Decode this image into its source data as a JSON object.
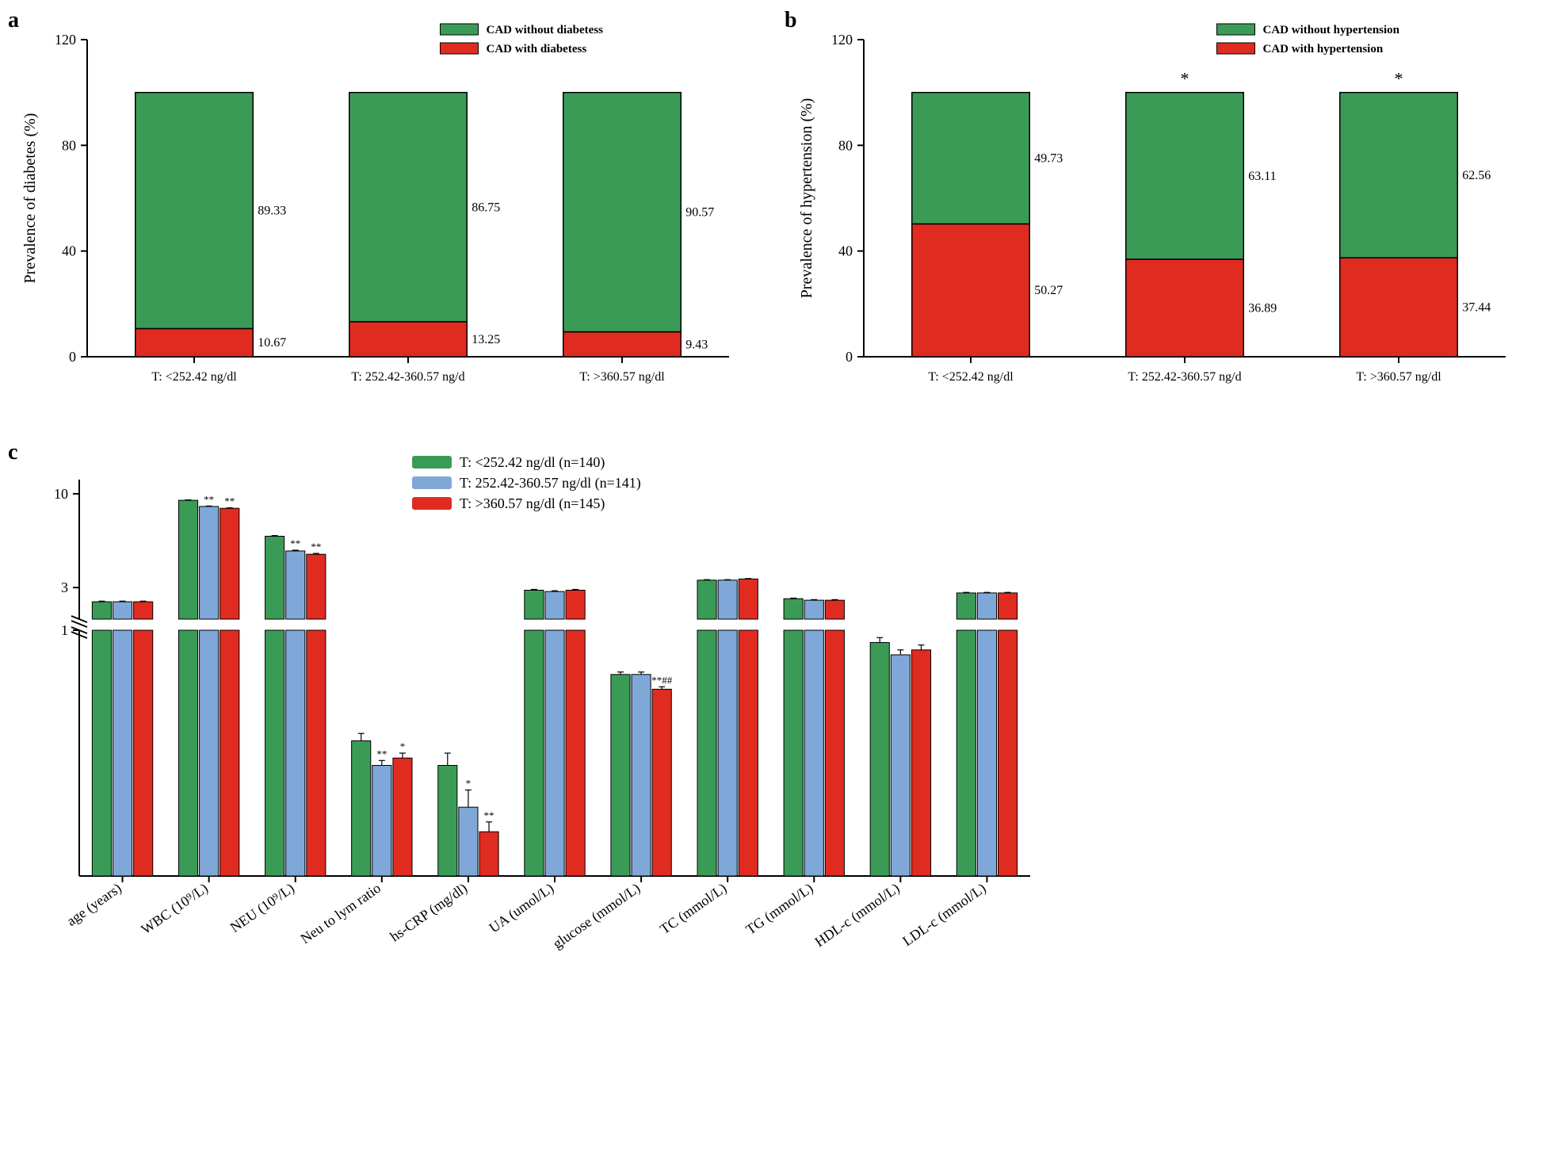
{
  "colors": {
    "green": "#3a9b57",
    "red": "#e02b20",
    "blue": "#7fa8d9",
    "black": "#000000",
    "white": "#ffffff"
  },
  "panelA": {
    "label": "a",
    "ylabel": "Prevalence of diabetes (%)",
    "ylim": [
      0,
      120
    ],
    "ytick_step": 40,
    "yticks": [
      0,
      40,
      80,
      120
    ],
    "categories": [
      "T: <252.42 ng/dl",
      "T: 252.42-360.57 ng/d",
      "T: >360.57 ng/dl"
    ],
    "legend": [
      {
        "label": "CAD without diabetess",
        "color": "#3a9b57"
      },
      {
        "label": "CAD with diabetess",
        "color": "#e02b20"
      }
    ],
    "bars": [
      {
        "with": 10.67,
        "without": 89.33,
        "sig": ""
      },
      {
        "with": 13.25,
        "without": 86.75,
        "sig": ""
      },
      {
        "with": 9.43,
        "without": 90.57,
        "sig": ""
      }
    ],
    "label_fontsize": 20,
    "tick_fontsize": 18,
    "value_fontsize": 16
  },
  "panelB": {
    "label": "b",
    "ylabel": "Prevalence of hypertension (%)",
    "ylim": [
      0,
      120
    ],
    "ytick_step": 40,
    "yticks": [
      0,
      40,
      80,
      120
    ],
    "categories": [
      "T: <252.42 ng/dl",
      "T: 252.42-360.57 ng/d",
      "T: >360.57 ng/dl"
    ],
    "legend": [
      {
        "label": "CAD without hypertension",
        "color": "#3a9b57"
      },
      {
        "label": "CAD with hypertension",
        "color": "#e02b20"
      }
    ],
    "bars": [
      {
        "with": 50.27,
        "without": 49.73,
        "sig": ""
      },
      {
        "with": 36.89,
        "without": 63.11,
        "sig": "*"
      },
      {
        "with": 37.44,
        "without": 62.56,
        "sig": "*"
      }
    ],
    "label_fontsize": 20,
    "tick_fontsize": 18,
    "value_fontsize": 16
  },
  "panelC": {
    "label": "c",
    "type": "grouped-bar-broken-log",
    "ylabel": "",
    "yticks_lower": [
      1
    ],
    "yticks_upper": [
      3,
      10
    ],
    "break_low": 1.0,
    "break_high": 2.0,
    "legend": [
      {
        "label": "T: <252.42 ng/dl (n=140)",
        "color": "#3a9b57"
      },
      {
        "label": "T: 252.42-360.57 ng/dl (n=141)",
        "color": "#7fa8d9"
      },
      {
        "label": "T: >360.57 ng/dl (n=145)",
        "color": "#e02b20"
      }
    ],
    "categories": [
      "age (years)",
      "WBC (10⁹/L)",
      "NEU (10⁹/L)",
      "Neu to lym ratio",
      "hs-CRP (mg/dl)",
      "UA (umol/L)",
      "glucose (mmol/L)",
      "TC (mmol/L)",
      "TG (mmol/L)",
      "HDL-c (mmol/L)",
      "LDL-c (mmol/L)"
    ],
    "series": [
      {
        "color": "#3a9b57",
        "values": [
          2.5,
          9.2,
          5.8,
          0.55,
          0.45,
          2.9,
          0.82,
          3.3,
          2.6,
          0.95,
          2.8
        ],
        "err": [
          0.02,
          0.05,
          0.05,
          0.03,
          0.05,
          0.03,
          0.01,
          0.02,
          0.02,
          0.02,
          0.02
        ],
        "sigs": [
          "",
          "",
          "",
          "",
          "",
          "",
          "",
          "",
          "",
          "",
          ""
        ]
      },
      {
        "color": "#7fa8d9",
        "values": [
          2.5,
          8.5,
          4.8,
          0.45,
          0.28,
          2.85,
          0.82,
          3.3,
          2.55,
          0.9,
          2.8
        ],
        "err": [
          0.02,
          0.05,
          0.05,
          0.02,
          0.07,
          0.03,
          0.01,
          0.02,
          0.02,
          0.02,
          0.02
        ],
        "sigs": [
          "",
          "**",
          "**",
          "**",
          "*",
          "",
          "",
          "",
          "",
          "",
          ""
        ]
      },
      {
        "color": "#e02b20",
        "values": [
          2.5,
          8.3,
          4.6,
          0.48,
          0.18,
          2.9,
          0.76,
          3.35,
          2.55,
          0.92,
          2.8
        ],
        "err": [
          0.02,
          0.05,
          0.05,
          0.02,
          0.04,
          0.03,
          0.01,
          0.02,
          0.02,
          0.02,
          0.02
        ],
        "sigs": [
          "",
          "**",
          "**",
          "*",
          "**",
          "",
          "**##",
          "",
          "",
          "",
          ""
        ]
      }
    ],
    "label_fontsize": 18,
    "tick_fontsize": 18
  }
}
